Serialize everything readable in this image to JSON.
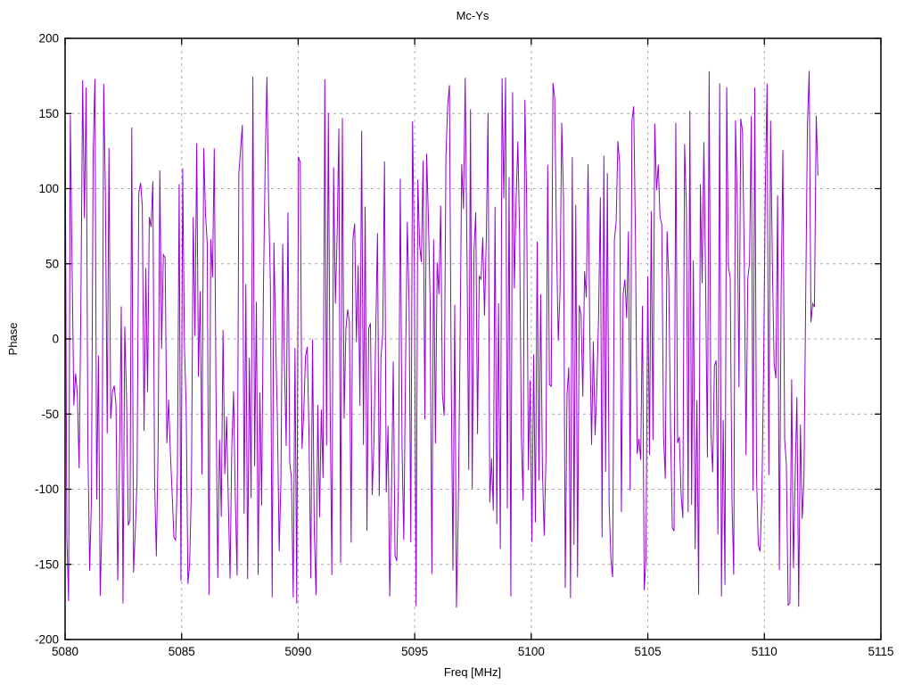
{
  "window": {
    "background": "#ffffff"
  },
  "chart_data": {
    "type": "line",
    "title": "Mc-Ys",
    "xlabel": "Freq [MHz]",
    "ylabel": "Phase",
    "xlim": [
      5080,
      5115
    ],
    "ylim": [
      -200,
      200
    ],
    "xticks": [
      5080,
      5085,
      5090,
      5095,
      5100,
      5105,
      5110,
      5115
    ],
    "yticks": [
      -200,
      -150,
      -100,
      -50,
      0,
      50,
      100,
      150,
      200
    ],
    "grid": true,
    "grid_style": "dashed-gray",
    "legend_position": "none",
    "frame": "full-box-with-mirrored-ticks",
    "series": [
      {
        "name": "Mc-Ys",
        "color": "#9400D3",
        "style": "solid-line",
        "marker": "none",
        "x_start": 5080,
        "x_end": 5112.3,
        "n_points": 430,
        "y_behavior": "wrapped phase noise, uniform random",
        "y_min": -180,
        "y_max": 180,
        "prng_seed": 987654321
      }
    ]
  }
}
